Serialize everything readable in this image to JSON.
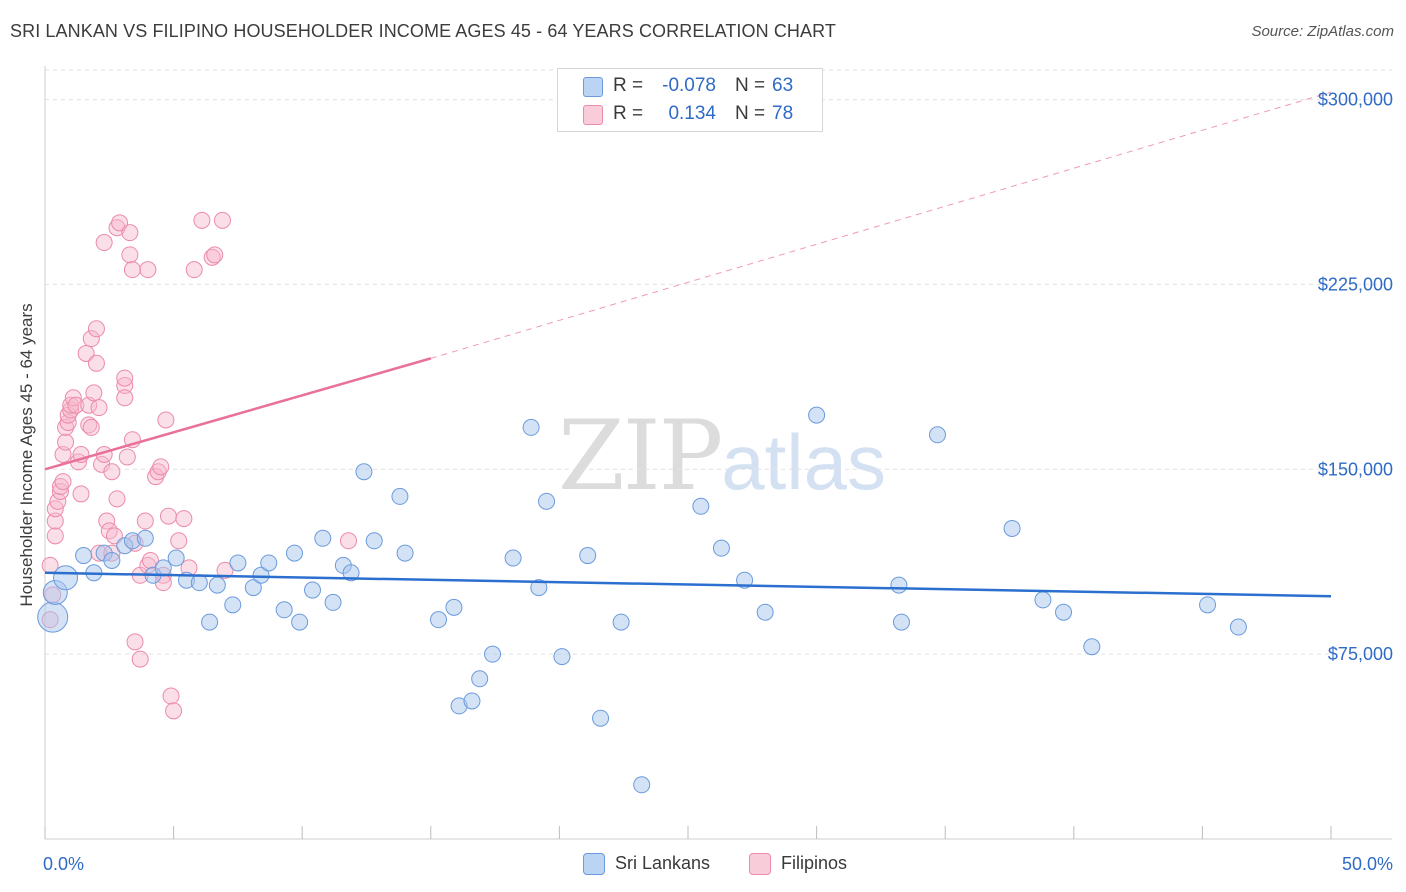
{
  "header": {
    "title": "SRI LANKAN VS FILIPINO HOUSEHOLDER INCOME AGES 45 - 64 YEARS CORRELATION CHART",
    "source": "Source: ZipAtlas.com"
  },
  "watermark": {
    "zip": "ZIP",
    "atlas": "atlas"
  },
  "colors": {
    "blue_fill": "#a9c6ee",
    "blue_stroke": "#6b9bdc",
    "blue_line": "#2b6fcf",
    "pink_fill": "#f6b8cc",
    "pink_stroke": "#ec8aa9",
    "pink_line": "#e8709a",
    "axis_text": "#2f6bc6",
    "grid": "#e2e2e2"
  },
  "stats": {
    "rows": [
      {
        "series": "Sri Lankans",
        "r_label": "R =",
        "r": "-0.078",
        "n_label": "N =",
        "n": "63"
      },
      {
        "series": "Filipinos",
        "r_label": "R =",
        "r": "0.134",
        "n_label": "N =",
        "n": "78"
      }
    ]
  },
  "legend": {
    "items": [
      "Sri Lankans",
      "Filipinos"
    ]
  },
  "chart_data": {
    "type": "scatter",
    "title": "SRI LANKAN VS FILIPINO HOUSEHOLDER INCOME AGES 45 - 64 YEARS CORRELATION CHART",
    "xlabel": "",
    "ylabel": "Householder Income Ages 45 - 64 years",
    "xlim": [
      0,
      50
    ],
    "ylim": [
      0,
      312000
    ],
    "x_tick_labels": [
      "0.0%",
      "50.0%"
    ],
    "y_ticks": [
      75000,
      150000,
      225000,
      300000
    ],
    "y_tick_labels": [
      "$75,000",
      "$150,000",
      "$225,000",
      "$300,000"
    ],
    "legend_position": "bottom-center",
    "grid": true,
    "series": [
      {
        "name": "Sri Lankans",
        "points": [
          [
            0.3,
            90000
          ],
          [
            0.4,
            100000
          ],
          [
            0.8,
            106000
          ],
          [
            1.5,
            115000
          ],
          [
            1.9,
            108000
          ],
          [
            2.3,
            116000
          ],
          [
            2.6,
            113000
          ],
          [
            3.1,
            119000
          ],
          [
            3.4,
            121000
          ],
          [
            3.9,
            122000
          ],
          [
            4.2,
            107000
          ],
          [
            4.6,
            110000
          ],
          [
            5.1,
            114000
          ],
          [
            5.5,
            105000
          ],
          [
            6.0,
            104000
          ],
          [
            6.4,
            88000
          ],
          [
            6.7,
            103000
          ],
          [
            7.3,
            95000
          ],
          [
            7.5,
            112000
          ],
          [
            8.1,
            102000
          ],
          [
            8.4,
            107000
          ],
          [
            8.7,
            112000
          ],
          [
            9.3,
            93000
          ],
          [
            9.7,
            116000
          ],
          [
            9.9,
            88000
          ],
          [
            10.4,
            101000
          ],
          [
            10.8,
            122000
          ],
          [
            11.2,
            96000
          ],
          [
            11.6,
            111000
          ],
          [
            11.9,
            108000
          ],
          [
            12.4,
            149000
          ],
          [
            12.8,
            121000
          ],
          [
            13.8,
            139000
          ],
          [
            14.0,
            116000
          ],
          [
            15.3,
            89000
          ],
          [
            15.9,
            94000
          ],
          [
            16.1,
            54000
          ],
          [
            16.6,
            56000
          ],
          [
            16.9,
            65000
          ],
          [
            17.4,
            75000
          ],
          [
            18.2,
            114000
          ],
          [
            18.9,
            167000
          ],
          [
            19.2,
            102000
          ],
          [
            19.5,
            137000
          ],
          [
            20.1,
            74000
          ],
          [
            21.1,
            115000
          ],
          [
            21.6,
            49000
          ],
          [
            22.4,
            88000
          ],
          [
            23.2,
            22000
          ],
          [
            25.5,
            135000
          ],
          [
            26.3,
            118000
          ],
          [
            27.2,
            105000
          ],
          [
            28.0,
            92000
          ],
          [
            30.0,
            172000
          ],
          [
            33.2,
            103000
          ],
          [
            33.3,
            88000
          ],
          [
            34.7,
            164000
          ],
          [
            37.6,
            126000
          ],
          [
            38.8,
            97000
          ],
          [
            39.6,
            92000
          ],
          [
            40.7,
            78000
          ],
          [
            45.2,
            95000
          ],
          [
            46.4,
            86000
          ]
        ],
        "regression": {
          "x": [
            0.0,
            50.0
          ],
          "y": [
            108000,
            98500
          ]
        }
      },
      {
        "name": "Filipinos",
        "points": [
          [
            0.2,
            89000
          ],
          [
            0.2,
            111000
          ],
          [
            0.3,
            99000
          ],
          [
            0.4,
            123000
          ],
          [
            0.4,
            129000
          ],
          [
            0.4,
            134000
          ],
          [
            0.5,
            137000
          ],
          [
            0.6,
            141000
          ],
          [
            0.6,
            143000
          ],
          [
            0.7,
            145000
          ],
          [
            0.7,
            156000
          ],
          [
            0.8,
            161000
          ],
          [
            0.8,
            167000
          ],
          [
            0.9,
            169000
          ],
          [
            0.9,
            172000
          ],
          [
            1.0,
            174000
          ],
          [
            1.0,
            176000
          ],
          [
            1.1,
            179000
          ],
          [
            1.2,
            176000
          ],
          [
            1.3,
            153000
          ],
          [
            1.4,
            156000
          ],
          [
            1.4,
            140000
          ],
          [
            1.6,
            197000
          ],
          [
            1.7,
            176000
          ],
          [
            1.7,
            168000
          ],
          [
            1.8,
            203000
          ],
          [
            1.8,
            167000
          ],
          [
            1.9,
            181000
          ],
          [
            2.0,
            193000
          ],
          [
            2.0,
            207000
          ],
          [
            2.1,
            175000
          ],
          [
            2.1,
            116000
          ],
          [
            2.2,
            152000
          ],
          [
            2.3,
            242000
          ],
          [
            2.3,
            156000
          ],
          [
            2.4,
            129000
          ],
          [
            2.5,
            125000
          ],
          [
            2.6,
            149000
          ],
          [
            2.6,
            116000
          ],
          [
            2.7,
            123000
          ],
          [
            2.8,
            138000
          ],
          [
            2.8,
            248000
          ],
          [
            2.9,
            250000
          ],
          [
            3.1,
            184000
          ],
          [
            3.1,
            179000
          ],
          [
            3.1,
            187000
          ],
          [
            3.2,
            155000
          ],
          [
            3.3,
            246000
          ],
          [
            3.3,
            237000
          ],
          [
            3.4,
            162000
          ],
          [
            3.4,
            231000
          ],
          [
            3.5,
            80000
          ],
          [
            3.5,
            120000
          ],
          [
            3.7,
            73000
          ],
          [
            3.7,
            107000
          ],
          [
            3.9,
            129000
          ],
          [
            4.0,
            111000
          ],
          [
            4.0,
            231000
          ],
          [
            4.1,
            113000
          ],
          [
            4.3,
            147000
          ],
          [
            4.4,
            149000
          ],
          [
            4.5,
            151000
          ],
          [
            4.6,
            107000
          ],
          [
            4.6,
            104000
          ],
          [
            4.7,
            170000
          ],
          [
            4.8,
            131000
          ],
          [
            4.9,
            58000
          ],
          [
            5.0,
            52000
          ],
          [
            5.2,
            121000
          ],
          [
            5.4,
            130000
          ],
          [
            5.6,
            110000
          ],
          [
            5.8,
            231000
          ],
          [
            6.1,
            251000
          ],
          [
            6.5,
            236000
          ],
          [
            6.6,
            237000
          ],
          [
            6.9,
            251000
          ],
          [
            7.0,
            109000
          ],
          [
            11.8,
            121000
          ]
        ],
        "regression": {
          "x": [
            0.0,
            15.0
          ],
          "y": [
            150000,
            195000
          ]
        },
        "regression_extended": {
          "x": [
            15.0,
            50.0
          ],
          "y": [
            195000,
            303000
          ]
        }
      }
    ]
  }
}
